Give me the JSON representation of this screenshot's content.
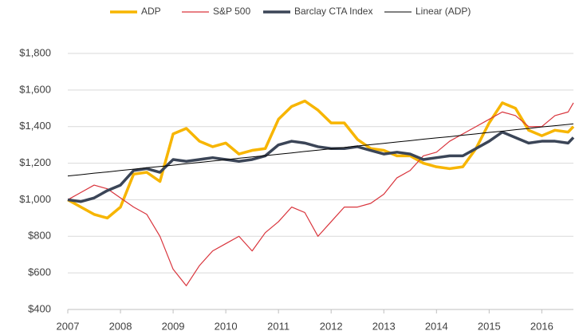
{
  "chart_data": {
    "type": "line",
    "x": [
      2007,
      2007.25,
      2007.5,
      2007.75,
      2008,
      2008.25,
      2008.5,
      2008.75,
      2009,
      2009.25,
      2009.5,
      2009.75,
      2010,
      2010.25,
      2010.5,
      2010.75,
      2011,
      2011.25,
      2011.5,
      2011.75,
      2012,
      2012.25,
      2012.5,
      2012.75,
      2013,
      2013.25,
      2013.5,
      2013.75,
      2014,
      2014.25,
      2014.5,
      2014.75,
      2015,
      2015.25,
      2015.5,
      2015.75,
      2016,
      2016.25,
      2016.5,
      2016.6
    ],
    "series": [
      {
        "name": "ADP",
        "color": "#f7b500",
        "width": 3.5,
        "values": [
          1000,
          960,
          920,
          900,
          960,
          1140,
          1150,
          1100,
          1360,
          1390,
          1320,
          1290,
          1310,
          1250,
          1270,
          1280,
          1440,
          1510,
          1540,
          1490,
          1420,
          1420,
          1330,
          1280,
          1270,
          1240,
          1240,
          1200,
          1180,
          1170,
          1180,
          1280,
          1420,
          1530,
          1500,
          1380,
          1350,
          1380,
          1370,
          1400
        ]
      },
      {
        "name": "S&P 500",
        "color": "#d9343c",
        "width": 1.2,
        "values": [
          1000,
          1040,
          1080,
          1060,
          1010,
          960,
          920,
          800,
          620,
          530,
          640,
          720,
          760,
          800,
          720,
          820,
          880,
          960,
          930,
          800,
          880,
          960,
          960,
          980,
          1030,
          1120,
          1160,
          1240,
          1260,
          1320,
          1360,
          1400,
          1440,
          1480,
          1460,
          1400,
          1400,
          1460,
          1480,
          1530
        ]
      },
      {
        "name": "Barclay CTA Index",
        "color": "#3b4557",
        "width": 3.5,
        "values": [
          1000,
          990,
          1010,
          1050,
          1080,
          1160,
          1170,
          1150,
          1220,
          1210,
          1220,
          1230,
          1220,
          1210,
          1220,
          1240,
          1300,
          1320,
          1310,
          1290,
          1280,
          1280,
          1290,
          1270,
          1250,
          1260,
          1250,
          1220,
          1230,
          1240,
          1240,
          1280,
          1320,
          1370,
          1340,
          1310,
          1320,
          1320,
          1310,
          1340
        ]
      },
      {
        "name": "Linear (ADP)",
        "color": "#000000",
        "width": 1,
        "values": [
          1130,
          1137,
          1145,
          1152,
          1160,
          1167,
          1175,
          1182,
          1189,
          1197,
          1204,
          1212,
          1219,
          1227,
          1234,
          1241,
          1249,
          1256,
          1264,
          1271,
          1279,
          1286,
          1294,
          1301,
          1308,
          1316,
          1323,
          1331,
          1338,
          1345,
          1353,
          1360,
          1368,
          1375,
          1383,
          1390,
          1398,
          1405,
          1412,
          1415
        ]
      }
    ],
    "xlim": [
      2007,
      2016.6
    ],
    "xticks": [
      2007,
      2008,
      2009,
      2010,
      2011,
      2012,
      2013,
      2014,
      2015,
      2016
    ],
    "ylim": [
      400,
      1800
    ],
    "yticks": [
      {
        "value": 400,
        "label": "$400"
      },
      {
        "value": 600,
        "label": "$600"
      },
      {
        "value": 800,
        "label": "$800"
      },
      {
        "value": 1000,
        "label": "$1,000"
      },
      {
        "value": 1200,
        "label": "$1,200"
      },
      {
        "value": 1400,
        "label": "$1,400"
      },
      {
        "value": 1600,
        "label": "$1,600"
      },
      {
        "value": 1800,
        "label": "$1,800"
      }
    ],
    "grid": true,
    "legend": "top"
  }
}
